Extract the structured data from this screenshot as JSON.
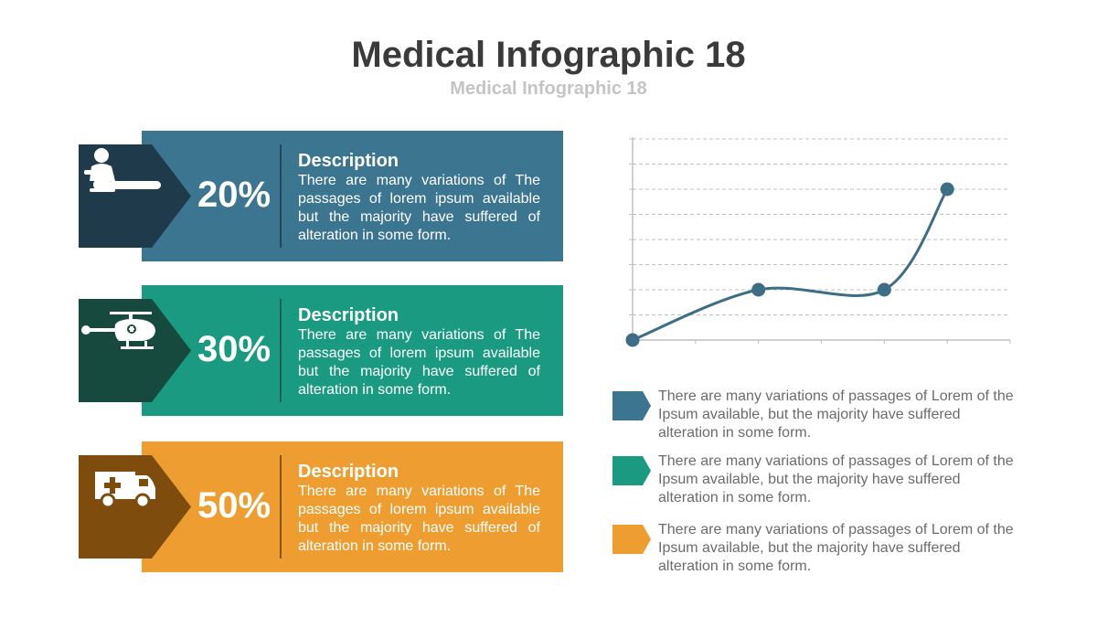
{
  "title": "Medical Infographic 18",
  "subtitle": "Medical Infographic 18",
  "colors": {
    "blue": "#3b7590",
    "blue_dark": "#1f3a4a",
    "blue_divider": "#22475a",
    "teal": "#1a9a80",
    "teal_dark": "#164a3e",
    "teal_divider": "#14604f",
    "orange": "#ee9e30",
    "orange_dark": "#7e4d0e",
    "orange_divider": "#8a5512",
    "line": "#3d6e86",
    "grid": "#bfbfbf"
  },
  "cards": [
    {
      "icon": "cpr-icon",
      "percent": "20%",
      "heading": "Description",
      "text": "There are many variations of  The passages of lorem ipsum available but the majority have suffered of alteration in some form."
    },
    {
      "icon": "helicopter-icon",
      "percent": "30%",
      "heading": "Description",
      "text": "There are many variations of  The passages of lorem ipsum available but the majority have suffered of alteration in some form."
    },
    {
      "icon": "ambulance-icon",
      "percent": "50%",
      "heading": "Description",
      "text": "There are many variations of  The passages of lorem ipsum available but the majority have suffered of alteration in some form."
    }
  ],
  "chart_data": {
    "type": "line",
    "title": "",
    "xlabel": "",
    "ylabel": "",
    "x": [
      0,
      2,
      4,
      5
    ],
    "values": [
      0,
      2,
      2,
      6
    ],
    "xlim": [
      0,
      6
    ],
    "ylim": [
      0,
      8
    ],
    "grid": true,
    "smooth": true,
    "markers": true
  },
  "legend": [
    {
      "color_key": "blue",
      "text": "There are many variations of passages of Lorem of the Ipsum available, but the majority have suffered alteration in some form."
    },
    {
      "color_key": "teal",
      "text": "There are many variations of passages of Lorem  of the Ipsum available, but the majority have suffered alteration in some form."
    },
    {
      "color_key": "orange",
      "text": "There are many variations of passages of Lorem of the  Ipsum available, but the majority have suffered alteration in some form."
    }
  ]
}
